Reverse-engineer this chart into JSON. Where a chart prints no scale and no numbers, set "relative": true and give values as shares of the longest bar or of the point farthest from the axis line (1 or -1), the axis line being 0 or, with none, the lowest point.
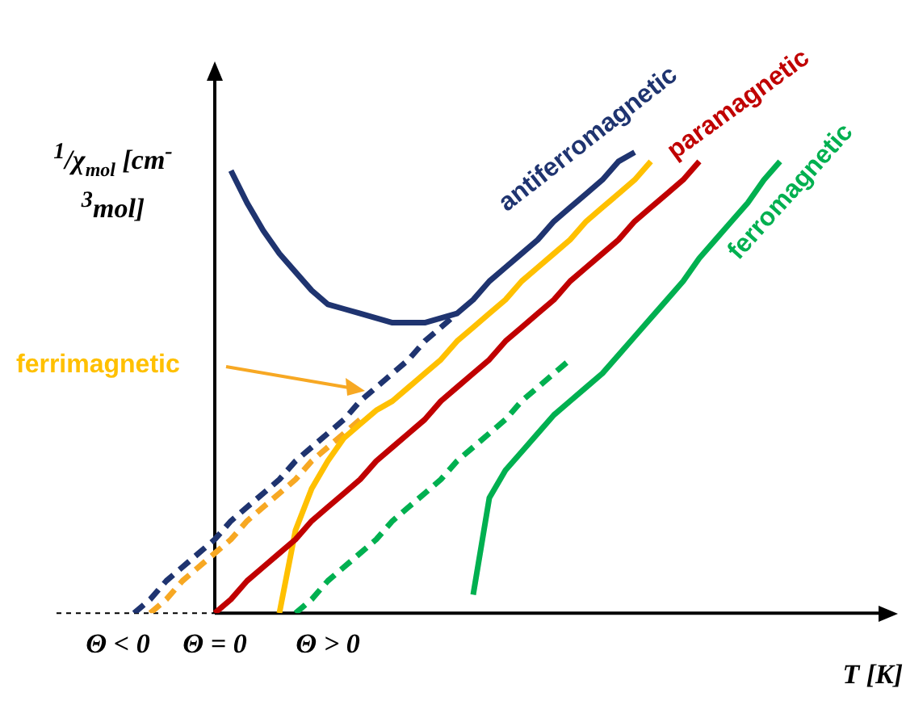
{
  "chart_data": {
    "type": "line",
    "relative": true,
    "xlabel": "T [K]",
    "ylabel": "$^{1}$/χ$_{mol}$ [cm$^{-3}$mol]",
    "categories": [
      null,
      "Θ < 0",
      null,
      null,
      null,
      null,
      null,
      "Θ = 0",
      null,
      null,
      null,
      null,
      null,
      null,
      "Θ > 0",
      null,
      null,
      null,
      null,
      null,
      null,
      null,
      null,
      null,
      null,
      null,
      null,
      null,
      null,
      null,
      null,
      null,
      null,
      null,
      null,
      null,
      null,
      null,
      null,
      null,
      null,
      null,
      null
    ],
    "legend": false,
    "marker": "none",
    "series": [
      {
        "name": "antiferromagnetic",
        "color": "#1f3470",
        "line_style": "solid",
        "values": [
          null,
          null,
          null,
          null,
          null,
          null,
          null,
          null,
          0.96,
          0.89,
          0.83,
          0.78,
          0.74,
          0.7,
          0.67,
          0.66,
          0.65,
          0.64,
          0.63,
          0.63,
          0.63,
          0.64,
          0.65,
          0.68,
          0.72,
          0.75,
          0.78,
          0.81,
          0.85,
          0.88,
          0.91,
          0.94,
          0.98,
          1.0,
          null,
          null,
          null,
          null,
          null,
          null,
          null,
          null,
          null
        ]
      },
      {
        "color": "#1f3470",
        "line_style": "dashed",
        "values": [
          null,
          null,
          0,
          0.03,
          0.07,
          0.1,
          0.13,
          0.16,
          0.2,
          0.23,
          0.26,
          0.29,
          0.33,
          0.36,
          0.39,
          0.42,
          0.46,
          0.49,
          0.52,
          0.55,
          0.59,
          0.62,
          0.65,
          null,
          null,
          null,
          null,
          null,
          null,
          null,
          null,
          null,
          null,
          null,
          null,
          null,
          null,
          null,
          null,
          null,
          null,
          null,
          null
        ]
      },
      {
        "name": "paramagnetic",
        "color": "#c00000",
        "line_style": "solid",
        "values": [
          null,
          null,
          null,
          null,
          null,
          null,
          null,
          0,
          0.03,
          0.07,
          0.1,
          0.13,
          0.16,
          0.2,
          0.23,
          0.26,
          0.29,
          0.33,
          0.36,
          0.39,
          0.42,
          0.46,
          0.49,
          0.52,
          0.55,
          0.59,
          0.62,
          0.65,
          0.68,
          0.72,
          0.75,
          0.78,
          0.81,
          0.85,
          0.88,
          0.91,
          0.94,
          0.98,
          null,
          null,
          null,
          null,
          null
        ]
      },
      {
        "name": "ferrimagnetic",
        "color": "#ffc000",
        "line_style": "solid",
        "values": [
          null,
          null,
          null,
          null,
          null,
          null,
          null,
          null,
          null,
          null,
          null,
          0,
          0.18,
          0.27,
          0.33,
          0.38,
          0.41,
          0.44,
          0.46,
          0.49,
          0.52,
          0.55,
          0.59,
          0.62,
          0.65,
          0.68,
          0.72,
          0.75,
          0.78,
          0.81,
          0.85,
          0.88,
          0.91,
          0.94,
          0.98,
          null,
          null,
          null,
          null,
          null,
          null,
          null,
          null
        ]
      },
      {
        "color": "#f7a823",
        "line_style": "dashed",
        "values": [
          null,
          null,
          null,
          0,
          0.03,
          0.07,
          0.1,
          0.13,
          0.16,
          0.2,
          0.23,
          0.26,
          0.29,
          0.33,
          0.36,
          0.39,
          0.42,
          null,
          null,
          null,
          null,
          null,
          null,
          null,
          null,
          null,
          null,
          null,
          null,
          null,
          null,
          null,
          null,
          null,
          null,
          null,
          null,
          null,
          null,
          null,
          null,
          null,
          null
        ]
      },
      {
        "name": "ferromagnetic",
        "color": "#00b050",
        "line_style": "solid",
        "values": [
          null,
          null,
          null,
          null,
          null,
          null,
          null,
          null,
          null,
          null,
          null,
          null,
          null,
          null,
          null,
          null,
          null,
          null,
          null,
          null,
          null,
          null,
          null,
          0.04,
          0.25,
          0.31,
          0.35,
          0.39,
          0.43,
          0.46,
          0.49,
          0.52,
          0.56,
          0.6,
          0.64,
          0.68,
          0.72,
          0.77,
          0.81,
          0.85,
          0.89,
          0.94,
          0.98
        ]
      },
      {
        "color": "#00b050",
        "line_style": "dashed",
        "values": [
          null,
          null,
          null,
          null,
          null,
          null,
          null,
          null,
          null,
          null,
          null,
          null,
          0,
          0.03,
          0.07,
          0.1,
          0.13,
          0.16,
          0.2,
          0.23,
          0.26,
          0.29,
          0.33,
          0.36,
          0.39,
          0.42,
          0.46,
          0.49,
          0.52,
          0.55,
          null,
          null,
          null,
          null,
          null,
          null,
          null,
          null,
          null,
          null,
          null,
          null,
          null
        ]
      }
    ]
  }
}
